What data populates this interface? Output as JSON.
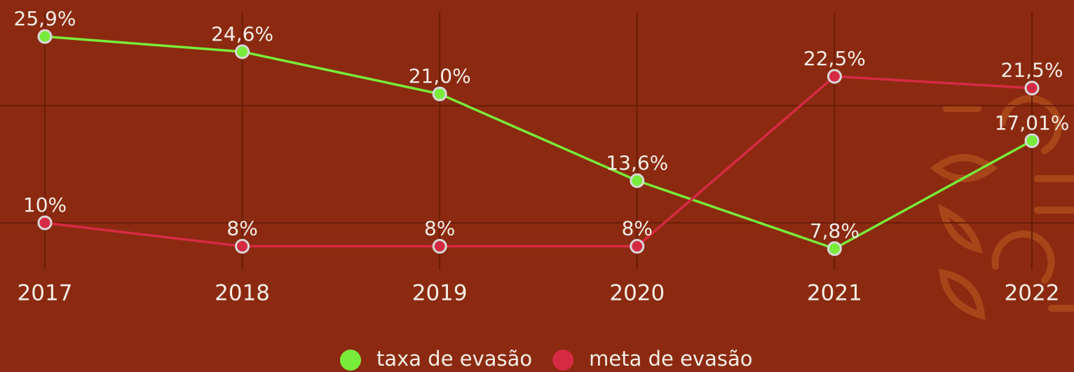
{
  "chart_data": {
    "type": "line",
    "categories": [
      "2017",
      "2018",
      "2019",
      "2020",
      "2021",
      "2022"
    ],
    "series": [
      {
        "name": "taxa de evasão",
        "color": "#78ec3a",
        "values": [
          25.9,
          24.6,
          21.0,
          13.6,
          7.8,
          17.01
        ],
        "value_labels": [
          "25,9%",
          "24,6%",
          "21,0%",
          "13,6%",
          "7,8%",
          "17,01%"
        ]
      },
      {
        "name": "meta de evasão",
        "color": "#d62a44",
        "values": [
          10,
          8,
          8,
          8,
          22.5,
          21.5
        ],
        "value_labels": [
          "10%",
          "8%",
          "8%",
          "8%",
          "22,5%",
          "21,5%"
        ]
      }
    ],
    "ylim": [
      6,
      28
    ],
    "yticks": [
      10,
      20
    ],
    "grid": true
  }
}
